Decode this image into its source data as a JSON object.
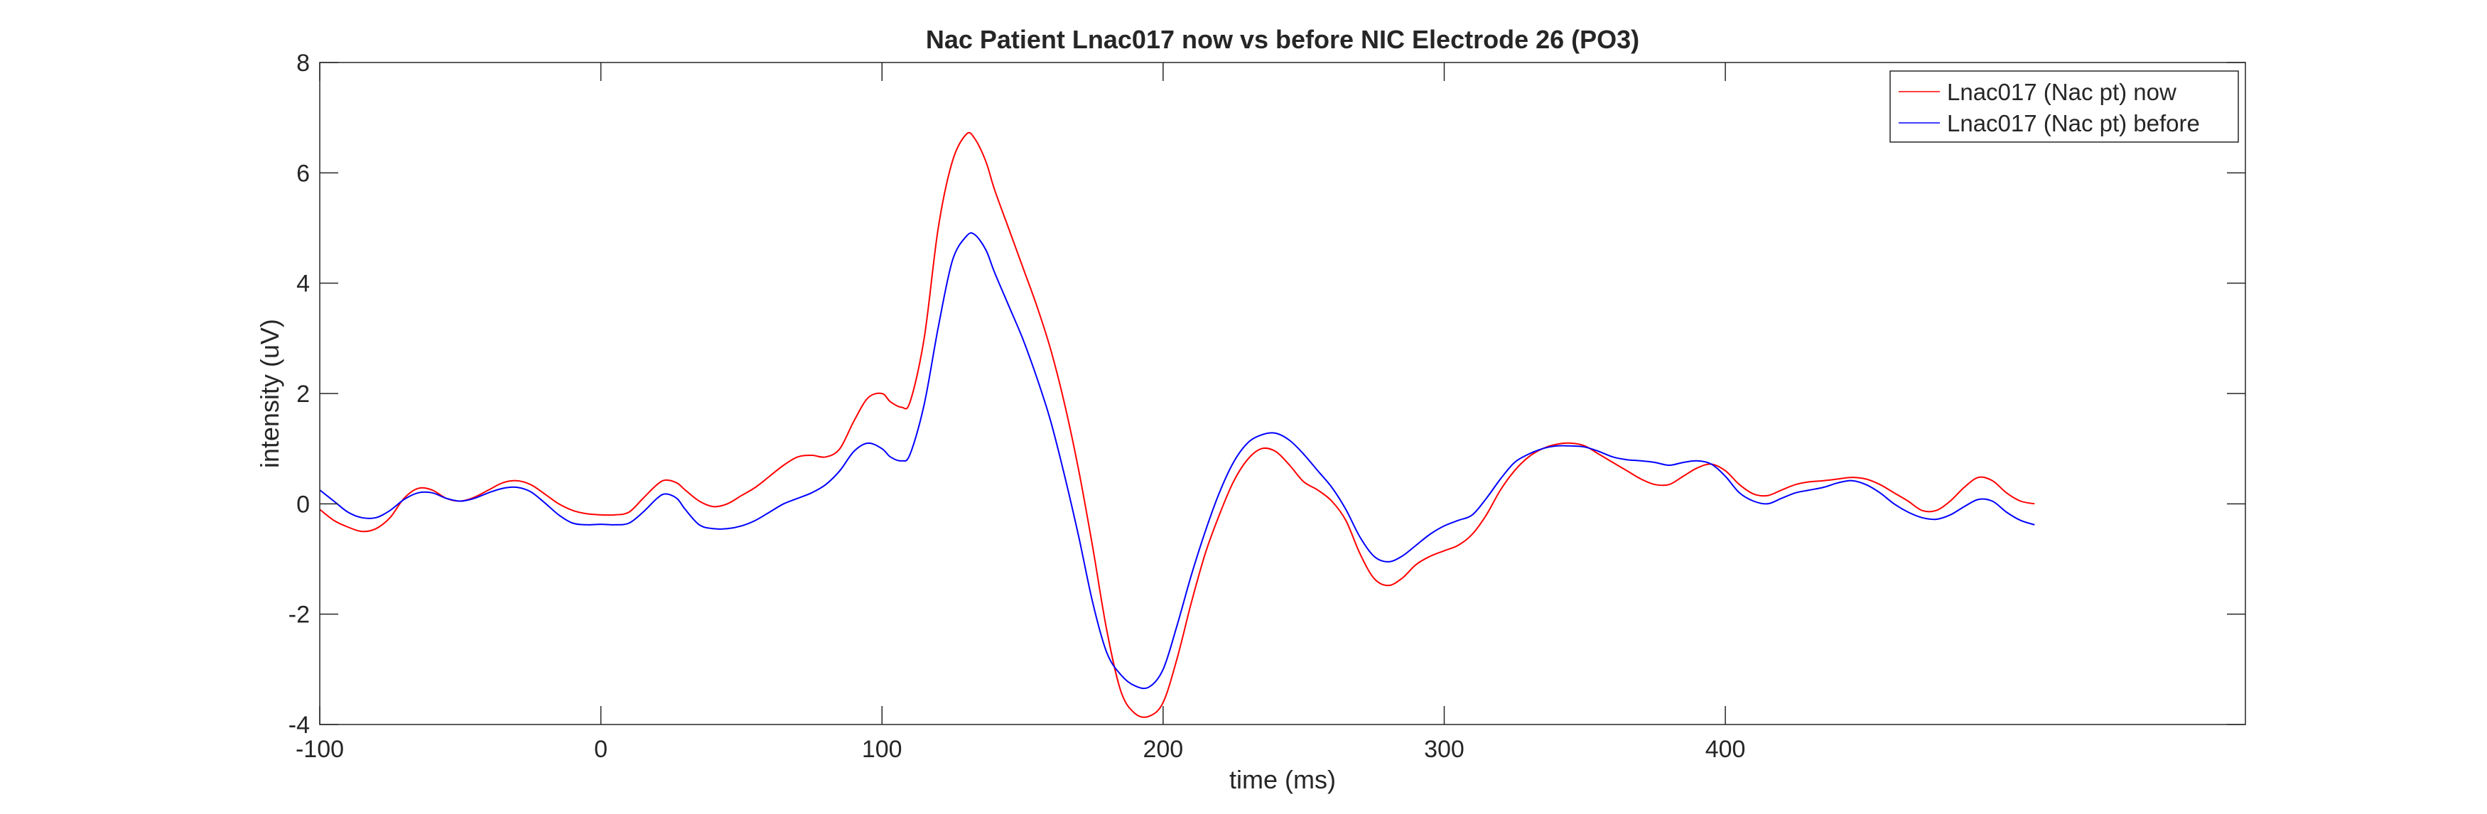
{
  "chart_data": {
    "type": "line",
    "title": "Nac Patient Lnac017 now vs before NIC Electrode 26 (PO3)",
    "xlabel": "time (ms)",
    "ylabel": "intensity (uV)",
    "xlim": [
      -100,
      585
    ],
    "ylim": [
      -4,
      8
    ],
    "xticks": [
      -100,
      0,
      100,
      200,
      300,
      400
    ],
    "yticks": [
      -4,
      -2,
      0,
      2,
      4,
      6,
      8
    ],
    "grid": false,
    "legend_position": "top-right",
    "series": [
      {
        "name": "Lnac017 (Nac pt) now",
        "color": "#ff0000",
        "points": [
          [
            -100,
            -0.1
          ],
          [
            -95,
            -0.3
          ],
          [
            -90,
            -0.42
          ],
          [
            -85,
            -0.5
          ],
          [
            -80,
            -0.45
          ],
          [
            -75,
            -0.25
          ],
          [
            -70,
            0.1
          ],
          [
            -65,
            0.28
          ],
          [
            -60,
            0.25
          ],
          [
            -55,
            0.1
          ],
          [
            -50,
            0.05
          ],
          [
            -45,
            0.12
          ],
          [
            -40,
            0.25
          ],
          [
            -35,
            0.38
          ],
          [
            -30,
            0.42
          ],
          [
            -25,
            0.35
          ],
          [
            -20,
            0.18
          ],
          [
            -15,
            0.0
          ],
          [
            -10,
            -0.12
          ],
          [
            -5,
            -0.18
          ],
          [
            0,
            -0.2
          ],
          [
            5,
            -0.2
          ],
          [
            10,
            -0.15
          ],
          [
            15,
            0.1
          ],
          [
            20,
            0.35
          ],
          [
            23,
            0.43
          ],
          [
            27,
            0.38
          ],
          [
            30,
            0.25
          ],
          [
            35,
            0.05
          ],
          [
            40,
            -0.05
          ],
          [
            45,
            0.0
          ],
          [
            50,
            0.15
          ],
          [
            55,
            0.3
          ],
          [
            60,
            0.5
          ],
          [
            65,
            0.7
          ],
          [
            70,
            0.85
          ],
          [
            75,
            0.88
          ],
          [
            80,
            0.85
          ],
          [
            85,
            1.0
          ],
          [
            90,
            1.5
          ],
          [
            95,
            1.92
          ],
          [
            100,
            2.0
          ],
          [
            103,
            1.85
          ],
          [
            107,
            1.75
          ],
          [
            110,
            1.85
          ],
          [
            115,
            3.0
          ],
          [
            120,
            5.0
          ],
          [
            125,
            6.2
          ],
          [
            130,
            6.7
          ],
          [
            133,
            6.62
          ],
          [
            137,
            6.2
          ],
          [
            140,
            5.7
          ],
          [
            145,
            5.0
          ],
          [
            150,
            4.3
          ],
          [
            155,
            3.6
          ],
          [
            160,
            2.8
          ],
          [
            165,
            1.8
          ],
          [
            170,
            0.6
          ],
          [
            175,
            -0.8
          ],
          [
            180,
            -2.3
          ],
          [
            185,
            -3.4
          ],
          [
            190,
            -3.8
          ],
          [
            195,
            -3.85
          ],
          [
            200,
            -3.6
          ],
          [
            205,
            -2.8
          ],
          [
            210,
            -1.8
          ],
          [
            215,
            -0.9
          ],
          [
            220,
            -0.2
          ],
          [
            225,
            0.4
          ],
          [
            230,
            0.8
          ],
          [
            235,
            1.0
          ],
          [
            240,
            0.95
          ],
          [
            245,
            0.7
          ],
          [
            250,
            0.4
          ],
          [
            255,
            0.25
          ],
          [
            260,
            0.05
          ],
          [
            265,
            -0.3
          ],
          [
            270,
            -0.9
          ],
          [
            275,
            -1.35
          ],
          [
            280,
            -1.48
          ],
          [
            285,
            -1.35
          ],
          [
            290,
            -1.1
          ],
          [
            295,
            -0.95
          ],
          [
            300,
            -0.85
          ],
          [
            305,
            -0.75
          ],
          [
            310,
            -0.55
          ],
          [
            315,
            -0.2
          ],
          [
            320,
            0.25
          ],
          [
            325,
            0.6
          ],
          [
            330,
            0.85
          ],
          [
            335,
            1.0
          ],
          [
            340,
            1.08
          ],
          [
            345,
            1.1
          ],
          [
            350,
            1.05
          ],
          [
            355,
            0.9
          ],
          [
            360,
            0.75
          ],
          [
            365,
            0.6
          ],
          [
            370,
            0.45
          ],
          [
            375,
            0.35
          ],
          [
            380,
            0.35
          ],
          [
            385,
            0.5
          ],
          [
            390,
            0.65
          ],
          [
            395,
            0.72
          ],
          [
            400,
            0.6
          ],
          [
            405,
            0.35
          ],
          [
            410,
            0.18
          ],
          [
            415,
            0.15
          ],
          [
            420,
            0.25
          ],
          [
            425,
            0.35
          ],
          [
            430,
            0.4
          ],
          [
            435,
            0.42
          ],
          [
            440,
            0.45
          ],
          [
            445,
            0.48
          ],
          [
            450,
            0.45
          ],
          [
            455,
            0.35
          ],
          [
            460,
            0.2
          ],
          [
            465,
            0.05
          ],
          [
            470,
            -0.12
          ],
          [
            475,
            -0.12
          ],
          [
            480,
            0.05
          ],
          [
            485,
            0.3
          ],
          [
            490,
            0.48
          ],
          [
            495,
            0.42
          ],
          [
            500,
            0.2
          ],
          [
            505,
            0.05
          ],
          [
            510,
            0.0
          ]
        ]
      },
      {
        "name": "Lnac017 (Nac pt) before",
        "color": "#0000ff",
        "points": [
          [
            -100,
            0.25
          ],
          [
            -95,
            0.05
          ],
          [
            -90,
            -0.15
          ],
          [
            -85,
            -0.25
          ],
          [
            -80,
            -0.25
          ],
          [
            -75,
            -0.12
          ],
          [
            -70,
            0.08
          ],
          [
            -65,
            0.2
          ],
          [
            -60,
            0.2
          ],
          [
            -55,
            0.1
          ],
          [
            -50,
            0.05
          ],
          [
            -45,
            0.1
          ],
          [
            -40,
            0.2
          ],
          [
            -35,
            0.28
          ],
          [
            -30,
            0.3
          ],
          [
            -25,
            0.22
          ],
          [
            -20,
            0.02
          ],
          [
            -15,
            -0.2
          ],
          [
            -10,
            -0.35
          ],
          [
            -5,
            -0.38
          ],
          [
            0,
            -0.37
          ],
          [
            5,
            -0.38
          ],
          [
            10,
            -0.35
          ],
          [
            15,
            -0.15
          ],
          [
            20,
            0.1
          ],
          [
            23,
            0.18
          ],
          [
            27,
            0.1
          ],
          [
            30,
            -0.1
          ],
          [
            35,
            -0.38
          ],
          [
            40,
            -0.45
          ],
          [
            45,
            -0.45
          ],
          [
            50,
            -0.4
          ],
          [
            55,
            -0.3
          ],
          [
            60,
            -0.15
          ],
          [
            65,
            0.0
          ],
          [
            70,
            0.1
          ],
          [
            75,
            0.2
          ],
          [
            80,
            0.35
          ],
          [
            85,
            0.6
          ],
          [
            90,
            0.95
          ],
          [
            95,
            1.1
          ],
          [
            100,
            1.0
          ],
          [
            103,
            0.85
          ],
          [
            107,
            0.78
          ],
          [
            110,
            0.9
          ],
          [
            115,
            1.8
          ],
          [
            120,
            3.2
          ],
          [
            125,
            4.4
          ],
          [
            130,
            4.85
          ],
          [
            133,
            4.88
          ],
          [
            137,
            4.6
          ],
          [
            140,
            4.2
          ],
          [
            145,
            3.6
          ],
          [
            150,
            3.0
          ],
          [
            155,
            2.3
          ],
          [
            160,
            1.5
          ],
          [
            165,
            0.5
          ],
          [
            170,
            -0.6
          ],
          [
            175,
            -1.8
          ],
          [
            180,
            -2.7
          ],
          [
            185,
            -3.1
          ],
          [
            190,
            -3.3
          ],
          [
            195,
            -3.32
          ],
          [
            200,
            -3.0
          ],
          [
            205,
            -2.2
          ],
          [
            210,
            -1.3
          ],
          [
            215,
            -0.5
          ],
          [
            220,
            0.2
          ],
          [
            225,
            0.75
          ],
          [
            230,
            1.1
          ],
          [
            235,
            1.25
          ],
          [
            240,
            1.28
          ],
          [
            245,
            1.15
          ],
          [
            250,
            0.9
          ],
          [
            255,
            0.6
          ],
          [
            260,
            0.3
          ],
          [
            265,
            -0.1
          ],
          [
            270,
            -0.6
          ],
          [
            275,
            -0.95
          ],
          [
            280,
            -1.05
          ],
          [
            285,
            -0.95
          ],
          [
            290,
            -0.75
          ],
          [
            295,
            -0.55
          ],
          [
            300,
            -0.4
          ],
          [
            305,
            -0.3
          ],
          [
            310,
            -0.2
          ],
          [
            315,
            0.1
          ],
          [
            320,
            0.45
          ],
          [
            325,
            0.75
          ],
          [
            330,
            0.9
          ],
          [
            335,
            1.0
          ],
          [
            340,
            1.05
          ],
          [
            345,
            1.05
          ],
          [
            350,
            1.03
          ],
          [
            355,
            0.95
          ],
          [
            360,
            0.85
          ],
          [
            365,
            0.8
          ],
          [
            370,
            0.78
          ],
          [
            375,
            0.75
          ],
          [
            380,
            0.7
          ],
          [
            385,
            0.75
          ],
          [
            390,
            0.78
          ],
          [
            395,
            0.72
          ],
          [
            400,
            0.5
          ],
          [
            405,
            0.2
          ],
          [
            410,
            0.05
          ],
          [
            415,
            0.0
          ],
          [
            420,
            0.1
          ],
          [
            425,
            0.2
          ],
          [
            430,
            0.25
          ],
          [
            435,
            0.3
          ],
          [
            440,
            0.38
          ],
          [
            445,
            0.42
          ],
          [
            450,
            0.35
          ],
          [
            455,
            0.2
          ],
          [
            460,
            0.0
          ],
          [
            465,
            -0.15
          ],
          [
            470,
            -0.25
          ],
          [
            475,
            -0.28
          ],
          [
            480,
            -0.2
          ],
          [
            485,
            -0.05
          ],
          [
            490,
            0.08
          ],
          [
            495,
            0.05
          ],
          [
            500,
            -0.15
          ],
          [
            505,
            -0.3
          ],
          [
            510,
            -0.38
          ]
        ]
      }
    ]
  }
}
